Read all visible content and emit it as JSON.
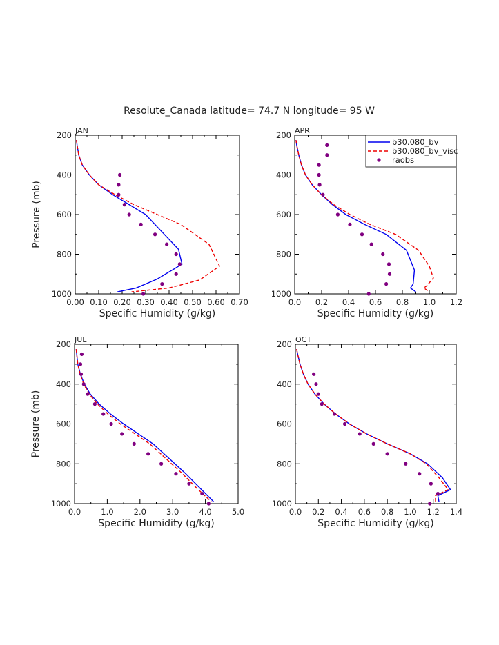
{
  "suptitle": "Resolute_Canada  latitude= 74.7 N longitude= 95 W",
  "colors": {
    "model": "#0000ee",
    "visc": "#ee0000",
    "raobs": "#800080",
    "axis": "#000000"
  },
  "legend": {
    "placement": "top-right of APR panel",
    "entries": [
      {
        "name": "b30.080_bv",
        "style": "solid"
      },
      {
        "name": "b30.080_bv_visc",
        "style": "dashed"
      },
      {
        "name": "raobs",
        "style": "dots"
      }
    ]
  },
  "chart_data": [
    {
      "type": "line",
      "title": "JAN",
      "xlabel": "Specific Humidity (g/kg)",
      "ylabel": "Pressure (mb)",
      "xlim": [
        0,
        0.7
      ],
      "ylim": [
        1000,
        200
      ],
      "xticks": [
        "0.00",
        "0.10",
        "0.20",
        "0.30",
        "0.40",
        "0.50",
        "0.60",
        "0.70"
      ],
      "yticks": [
        "200",
        "400",
        "600",
        "800",
        "1000"
      ],
      "series": [
        {
          "name": "b30.080_bv",
          "style": "solid",
          "x": [
            0.005,
            0.008,
            0.015,
            0.03,
            0.06,
            0.1,
            0.16,
            0.23,
            0.3,
            0.38,
            0.44,
            0.455,
            0.35,
            0.26,
            0.18
          ],
          "y": [
            225,
            250,
            300,
            350,
            400,
            450,
            500,
            550,
            600,
            700,
            775,
            850,
            925,
            970,
            990
          ]
        },
        {
          "name": "b30.080_bv_visc",
          "style": "dashed",
          "x": [
            0.005,
            0.008,
            0.015,
            0.03,
            0.06,
            0.1,
            0.17,
            0.25,
            0.35,
            0.45,
            0.57,
            0.615,
            0.53,
            0.4,
            0.24
          ],
          "y": [
            225,
            250,
            300,
            350,
            400,
            450,
            500,
            550,
            600,
            650,
            750,
            860,
            930,
            970,
            990
          ]
        },
        {
          "name": "raobs",
          "style": "dots",
          "x": [
            0.19,
            0.185,
            0.185,
            0.21,
            0.23,
            0.28,
            0.34,
            0.39,
            0.43,
            0.445,
            0.43,
            0.37,
            0.29
          ],
          "y": [
            400,
            450,
            500,
            550,
            600,
            650,
            700,
            750,
            800,
            850,
            900,
            950,
            1000
          ]
        }
      ]
    },
    {
      "type": "line",
      "title": "APR",
      "xlabel": "Specific Humidity (g/kg)",
      "ylabel": "",
      "xlim": [
        0,
        1.2
      ],
      "ylim": [
        1000,
        200
      ],
      "xticks": [
        "0.0",
        "0.2",
        "0.4",
        "0.6",
        "0.8",
        "1.0",
        "1.2"
      ],
      "yticks": [
        "200",
        "400",
        "600",
        "800",
        "1000"
      ],
      "series": [
        {
          "name": "b30.080_bv",
          "style": "solid",
          "x": [
            0.01,
            0.015,
            0.03,
            0.05,
            0.08,
            0.13,
            0.2,
            0.28,
            0.38,
            0.52,
            0.68,
            0.83,
            0.89,
            0.88,
            0.86,
            0.9
          ],
          "y": [
            225,
            250,
            300,
            350,
            400,
            450,
            500,
            550,
            600,
            650,
            700,
            780,
            880,
            950,
            970,
            990
          ]
        },
        {
          "name": "b30.080_bv_visc",
          "style": "dashed",
          "x": [
            0.01,
            0.015,
            0.03,
            0.05,
            0.08,
            0.13,
            0.2,
            0.29,
            0.41,
            0.56,
            0.75,
            0.92,
            1.0,
            1.03,
            0.98,
            0.96,
            1.0
          ],
          "y": [
            225,
            250,
            300,
            350,
            400,
            450,
            500,
            550,
            600,
            650,
            700,
            780,
            860,
            920,
            960,
            970,
            990
          ]
        },
        {
          "name": "raobs",
          "style": "dots",
          "x": [
            0.24,
            0.24,
            0.18,
            0.18,
            0.185,
            0.21,
            0.32,
            0.41,
            0.5,
            0.57,
            0.655,
            0.7,
            0.705,
            0.68,
            0.55
          ],
          "y": [
            250,
            300,
            350,
            400,
            450,
            500,
            600,
            650,
            700,
            750,
            800,
            850,
            900,
            950,
            1000
          ]
        }
      ]
    },
    {
      "type": "line",
      "title": "JUL",
      "xlabel": "Specific Humidity (g/kg)",
      "ylabel": "Pressure (mb)",
      "xlim": [
        0,
        5.0
      ],
      "ylim": [
        1000,
        200
      ],
      "xticks": [
        "0.0",
        "1.0",
        "2.0",
        "3.0",
        "4.0",
        "5.0"
      ],
      "yticks": [
        "200",
        "400",
        "600",
        "800",
        "1000"
      ],
      "series": [
        {
          "name": "b30.080_bv",
          "style": "solid",
          "x": [
            0.05,
            0.1,
            0.18,
            0.3,
            0.48,
            0.75,
            1.1,
            1.5,
            1.95,
            2.4,
            2.9,
            3.4,
            3.85,
            4.25
          ],
          "y": [
            225,
            300,
            350,
            400,
            450,
            500,
            550,
            600,
            650,
            700,
            775,
            850,
            925,
            990
          ]
        },
        {
          "name": "b30.080_bv_visc",
          "style": "dashed",
          "x": [
            0.05,
            0.1,
            0.17,
            0.28,
            0.45,
            0.7,
            1.02,
            1.4,
            1.85,
            2.3,
            2.8,
            3.3,
            3.75,
            4.18
          ],
          "y": [
            225,
            300,
            350,
            400,
            450,
            500,
            550,
            600,
            650,
            700,
            775,
            850,
            925,
            990
          ]
        },
        {
          "name": "raobs",
          "style": "dots",
          "x": [
            0.22,
            0.18,
            0.2,
            0.28,
            0.4,
            0.62,
            0.88,
            1.12,
            1.45,
            1.82,
            2.25,
            2.65,
            3.1,
            3.5,
            3.9,
            4.1
          ],
          "y": [
            250,
            300,
            350,
            400,
            450,
            500,
            550,
            600,
            650,
            700,
            750,
            800,
            850,
            900,
            950,
            1000
          ]
        }
      ]
    },
    {
      "type": "line",
      "title": "OCT",
      "xlabel": "Specific Humidity (g/kg)",
      "ylabel": "",
      "xlim": [
        0,
        1.4
      ],
      "ylim": [
        1000,
        200
      ],
      "xticks": [
        "0.0",
        "0.2",
        "0.4",
        "0.6",
        "0.8",
        "1.0",
        "1.2",
        "1.4"
      ],
      "yticks": [
        "200",
        "400",
        "600",
        "800",
        "1000"
      ],
      "series": [
        {
          "name": "b30.080_bv",
          "style": "solid",
          "x": [
            0.01,
            0.02,
            0.04,
            0.07,
            0.11,
            0.17,
            0.25,
            0.35,
            0.47,
            0.62,
            0.8,
            1.0,
            1.15,
            1.28,
            1.35,
            1.24,
            1.25
          ],
          "y": [
            225,
            250,
            300,
            350,
            400,
            450,
            500,
            550,
            600,
            650,
            700,
            750,
            800,
            870,
            930,
            960,
            990
          ]
        },
        {
          "name": "b30.080_bv_visc",
          "style": "dashed",
          "x": [
            0.01,
            0.02,
            0.04,
            0.07,
            0.11,
            0.17,
            0.25,
            0.35,
            0.47,
            0.62,
            0.8,
            1.0,
            1.14,
            1.25,
            1.33,
            1.22,
            1.22
          ],
          "y": [
            225,
            250,
            300,
            350,
            400,
            450,
            500,
            550,
            600,
            650,
            700,
            750,
            800,
            870,
            930,
            960,
            990
          ]
        },
        {
          "name": "raobs",
          "style": "dots",
          "x": [
            0.16,
            0.18,
            0.2,
            0.23,
            0.34,
            0.43,
            0.56,
            0.68,
            0.8,
            0.96,
            1.08,
            1.18,
            1.24,
            1.17
          ],
          "y": [
            350,
            400,
            450,
            500,
            550,
            600,
            650,
            700,
            750,
            800,
            850,
            900,
            950,
            1000
          ]
        }
      ]
    }
  ]
}
